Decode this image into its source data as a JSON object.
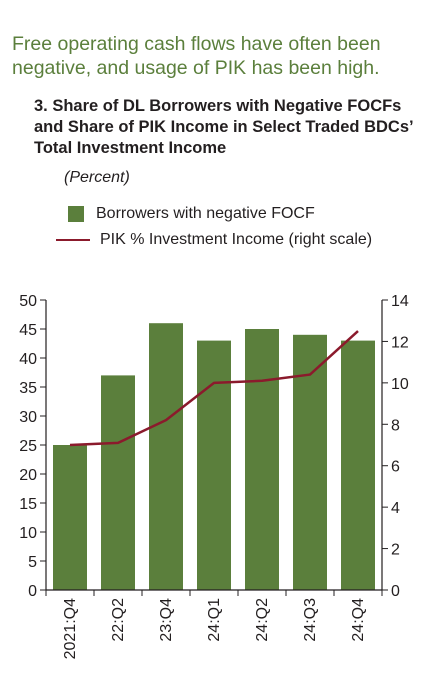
{
  "headline": "Free operating cash flows have often been negative, and usage of PIK has been high.",
  "chart_title": "3. Share of DL Borrowers with Negative FOCFs and Share of PIK Income in  Select Traded BDCs’ Total Investment Income",
  "chart_subtitle": "(Percent)",
  "colors": {
    "bar": "#5b7f3c",
    "line": "#8b1a2c",
    "headline": "#5b7f3c"
  },
  "chart_data": {
    "type": "bar",
    "categories": [
      "2021:Q4",
      "22:Q2",
      "23:Q4",
      "24:Q1",
      "24:Q2",
      "24:Q3",
      "24:Q4"
    ],
    "series": [
      {
        "name": "Borrowers with negative FOCF",
        "type": "bar",
        "axis": "left",
        "values": [
          25,
          37,
          46,
          43,
          45,
          44,
          43
        ]
      },
      {
        "name": "PIK % Investment Income (right scale)",
        "type": "line",
        "axis": "right",
        "values": [
          7.0,
          7.1,
          8.2,
          10.0,
          10.1,
          10.4,
          12.5
        ]
      }
    ],
    "y_left": {
      "ylim": [
        0,
        50
      ],
      "ticks": [
        "0",
        "5",
        "10",
        "15",
        "20",
        "25",
        "30",
        "35",
        "40",
        "45",
        "50"
      ]
    },
    "y_right": {
      "ylim": [
        0,
        14
      ],
      "ticks": [
        "0",
        "2",
        "4",
        "6",
        "8",
        "10",
        "12",
        "14"
      ]
    },
    "legend": [
      "Borrowers with negative FOCF",
      "PIK % Investment Income (right scale)"
    ],
    "legend_position": "top",
    "grid": false
  }
}
